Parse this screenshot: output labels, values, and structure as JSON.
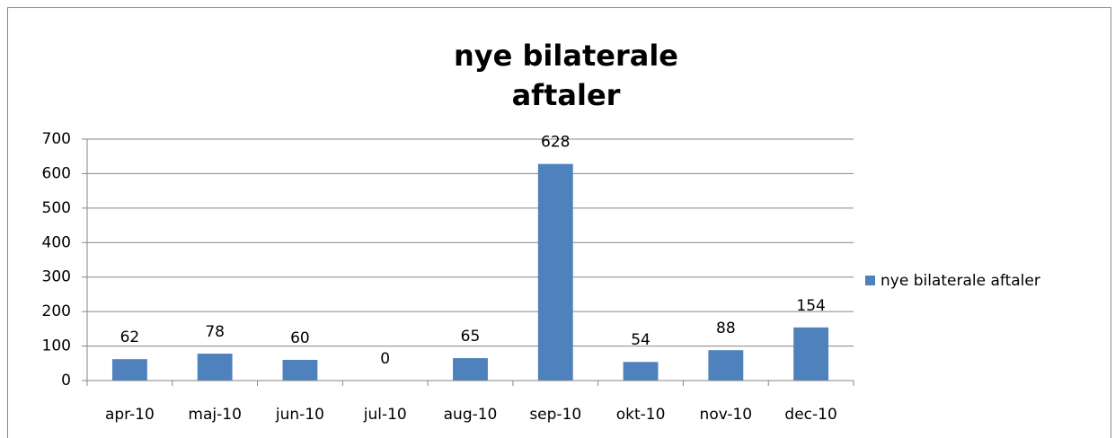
{
  "chart_data": {
    "type": "bar",
    "title": "nye bilaterale aftaler",
    "categories": [
      "apr-10",
      "maj-10",
      "jun-10",
      "jul-10",
      "aug-10",
      "sep-10",
      "okt-10",
      "nov-10",
      "dec-10"
    ],
    "series": [
      {
        "name": "nye bilaterale aftaler",
        "color": "#4f81bd",
        "values": [
          62,
          78,
          60,
          0,
          65,
          628,
          54,
          88,
          154
        ]
      }
    ],
    "ylim": [
      0,
      700
    ],
    "yticks": [
      0,
      100,
      200,
      300,
      400,
      500,
      600,
      700
    ],
    "grid": true,
    "legend": "right"
  }
}
